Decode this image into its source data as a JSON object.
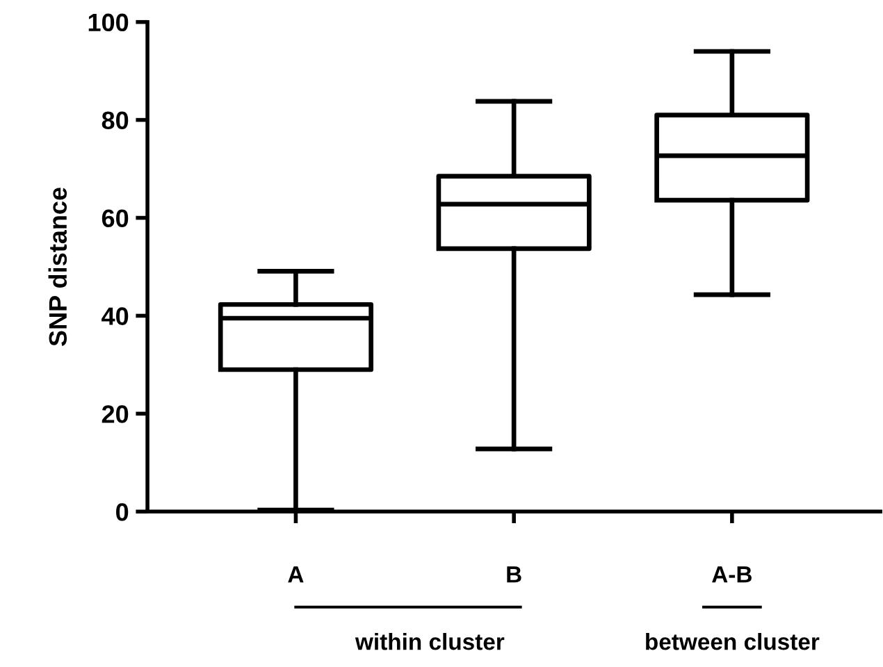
{
  "chart_data": {
    "type": "box",
    "ylabel": "SNP distance",
    "categories": [
      "A",
      "B",
      "A-B"
    ],
    "boxes": [
      {
        "low": 0.3,
        "q1": 29,
        "median": 39.5,
        "q3": 42.3,
        "high": 49.1
      },
      {
        "low": 12.8,
        "q1": 53.7,
        "median": 62.8,
        "q3": 68.5,
        "high": 83.8
      },
      {
        "low": 44.3,
        "q1": 63.6,
        "median": 72.7,
        "q3": 81,
        "high": 94
      }
    ],
    "ylim": [
      0,
      100
    ],
    "yticks": [
      0,
      20,
      40,
      60,
      80,
      100
    ],
    "grid": false,
    "annotations": [
      "within cluster",
      "between cluster"
    ]
  }
}
